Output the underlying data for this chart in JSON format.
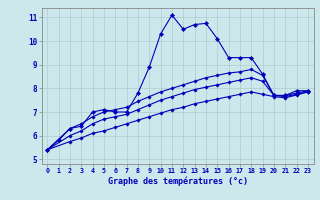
{
  "xlabel": "Graphe des températures (°c)",
  "bg_color": "#cce8ed",
  "grid_color": "#aacccc",
  "line_color": "#0000bb",
  "xlim": [
    -0.5,
    23.5
  ],
  "ylim": [
    4.8,
    11.4
  ],
  "xticks": [
    0,
    1,
    2,
    3,
    4,
    5,
    6,
    7,
    8,
    9,
    10,
    11,
    12,
    13,
    14,
    15,
    16,
    17,
    18,
    19,
    20,
    21,
    22,
    23
  ],
  "yticks": [
    5,
    6,
    7,
    8,
    9,
    10,
    11
  ],
  "line1_x": [
    0,
    1,
    2,
    3,
    4,
    5,
    6,
    7,
    8,
    9,
    10,
    11,
    12,
    13,
    14,
    15,
    16,
    17,
    18,
    19,
    20,
    21,
    22,
    23
  ],
  "line1_y": [
    5.4,
    5.8,
    6.3,
    6.4,
    7.0,
    7.1,
    7.0,
    7.0,
    7.8,
    8.9,
    10.3,
    11.1,
    10.5,
    10.7,
    10.75,
    10.1,
    9.3,
    9.3,
    9.3,
    8.6,
    7.7,
    7.7,
    7.9,
    7.9
  ],
  "line2_x": [
    0,
    2,
    3,
    4,
    5,
    6,
    7,
    8,
    9,
    10,
    11,
    12,
    13,
    14,
    15,
    16,
    17,
    18,
    19,
    20,
    21,
    22,
    23
  ],
  "line2_y": [
    5.4,
    6.3,
    6.5,
    6.8,
    7.0,
    7.1,
    7.2,
    7.45,
    7.65,
    7.85,
    8.0,
    8.15,
    8.3,
    8.45,
    8.55,
    8.65,
    8.7,
    8.8,
    8.55,
    7.7,
    7.7,
    7.8,
    7.9
  ],
  "line3_x": [
    0,
    2,
    3,
    4,
    5,
    6,
    7,
    8,
    9,
    10,
    11,
    12,
    13,
    14,
    15,
    16,
    17,
    18,
    19,
    20,
    21,
    22,
    23
  ],
  "line3_y": [
    5.4,
    6.0,
    6.2,
    6.5,
    6.7,
    6.8,
    6.9,
    7.1,
    7.3,
    7.5,
    7.65,
    7.8,
    7.95,
    8.05,
    8.15,
    8.25,
    8.35,
    8.45,
    8.3,
    7.7,
    7.65,
    7.75,
    7.85
  ],
  "line4_x": [
    0,
    2,
    3,
    4,
    5,
    6,
    7,
    8,
    9,
    10,
    11,
    12,
    13,
    14,
    15,
    16,
    17,
    18,
    19,
    20,
    21,
    22,
    23
  ],
  "line4_y": [
    5.4,
    5.75,
    5.9,
    6.1,
    6.2,
    6.35,
    6.5,
    6.65,
    6.8,
    6.95,
    7.1,
    7.2,
    7.35,
    7.45,
    7.55,
    7.65,
    7.75,
    7.85,
    7.75,
    7.65,
    7.6,
    7.72,
    7.85
  ]
}
